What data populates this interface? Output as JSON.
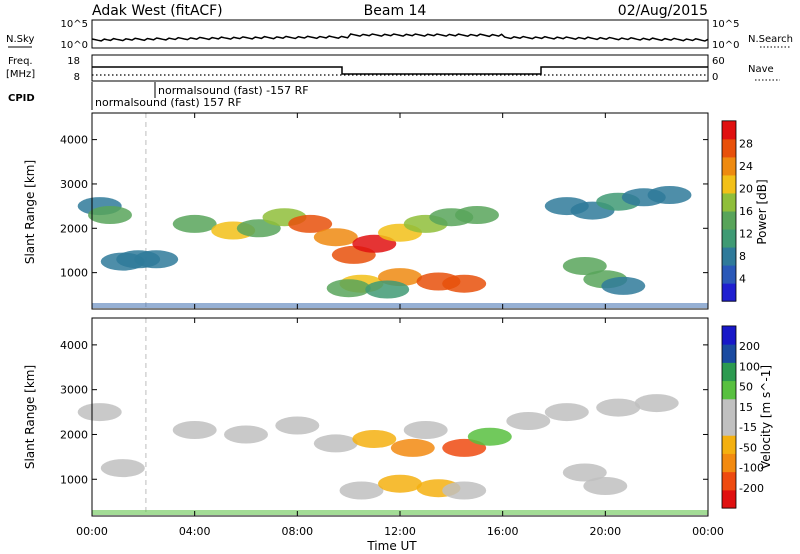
{
  "header": {
    "title_left": "Adak West (fitACF)",
    "title_center": "Beam 14",
    "title_right": "02/Aug/2015"
  },
  "top_panels": {
    "nsky_label": "N.Sky",
    "nsearch_label": "N.Search",
    "scale_hi": "10^5",
    "scale_lo": "10^0",
    "freq_label": "Freq.",
    "freq_unit": "[MHz]",
    "freq_ticks": [
      "18",
      "8"
    ],
    "nave_label": "Nave",
    "nave_ticks": [
      "60",
      "0"
    ],
    "cpid_label": "CPID",
    "cpid_line1": "normalsound (fast) -157 RF",
    "cpid_line2": "normalsound (fast) 157 RF"
  },
  "colors": {
    "power": [
      "#1f1fd0",
      "#2a58b8",
      "#2f7a9a",
      "#3f9a74",
      "#58a45a",
      "#8fbe3a",
      "#f2c018",
      "#ee8a10",
      "#e8500a",
      "#e01010"
    ],
    "velocity": [
      "#e01010",
      "#ee4a10",
      "#f28a10",
      "#f4b010",
      "#c0c0c0",
      "#c0c0c0",
      "#58c040",
      "#2c9a50",
      "#1a4aa0",
      "#1818c8"
    ]
  },
  "chart_data": [
    {
      "type": "heatmap",
      "name": "power-panel",
      "xlabel": "Time UT",
      "ylabel": "Slant Range [km]",
      "xlim": [
        0,
        24
      ],
      "ylim": [
        180,
        4600
      ],
      "xticks": [
        "00:00",
        "04:00",
        "08:00",
        "12:00",
        "16:00",
        "20:00",
        "00:00"
      ],
      "yticks": [
        1000,
        2000,
        3000,
        4000
      ],
      "colorbar_label": "Power [dB]",
      "colorbar_ticks": [
        "28",
        "24",
        "20",
        "16",
        "12",
        "8",
        "4"
      ],
      "colorbar_range": [
        0,
        30
      ],
      "series": [
        {
          "points": [
            [
              0.3,
              2500,
              6
            ],
            [
              0.7,
              2300,
              12
            ],
            [
              1.2,
              1250,
              8
            ],
            [
              1.8,
              1300,
              6
            ],
            [
              2.5,
              1300,
              6
            ],
            [
              4.0,
              2100,
              14
            ],
            [
              5.5,
              1950,
              18
            ],
            [
              6.5,
              2000,
              14
            ],
            [
              7.5,
              2250,
              16
            ],
            [
              8.5,
              2100,
              24
            ],
            [
              9.5,
              1800,
              22
            ],
            [
              10.2,
              1400,
              26
            ],
            [
              11.0,
              1650,
              28
            ],
            [
              12.0,
              1900,
              20
            ],
            [
              13.0,
              2100,
              16
            ],
            [
              14.0,
              2250,
              14
            ],
            [
              15.0,
              2300,
              12
            ],
            [
              10.5,
              750,
              18
            ],
            [
              12.0,
              900,
              22
            ],
            [
              13.5,
              800,
              24
            ],
            [
              14.5,
              750,
              24
            ],
            [
              10.0,
              650,
              12
            ],
            [
              11.5,
              620,
              10
            ],
            [
              18.5,
              2500,
              8
            ],
            [
              19.5,
              2400,
              6
            ],
            [
              20.5,
              2600,
              10
            ],
            [
              21.5,
              2700,
              8
            ],
            [
              22.5,
              2750,
              6
            ],
            [
              19.2,
              1150,
              14
            ],
            [
              20.0,
              850,
              12
            ],
            [
              20.7,
              700,
              8
            ]
          ]
        }
      ]
    },
    {
      "type": "heatmap",
      "name": "velocity-panel",
      "xlabel": "Time UT",
      "ylabel": "Slant Range [km]",
      "xlim": [
        0,
        24
      ],
      "ylim": [
        180,
        4600
      ],
      "xticks": [
        "00:00",
        "04:00",
        "08:00",
        "12:00",
        "16:00",
        "20:00",
        "00:00"
      ],
      "yticks": [
        1000,
        2000,
        3000,
        4000
      ],
      "colorbar_label": "Velocity [m s^-1]",
      "colorbar_ticks": [
        "200",
        "100",
        "50",
        "15",
        "-15",
        "-50",
        "-100",
        "-200"
      ],
      "colorbar_range": [
        -250,
        250
      ],
      "series": [
        {
          "points": [
            [
              0.3,
              2500,
              0
            ],
            [
              1.2,
              1250,
              0
            ],
            [
              4.0,
              2100,
              0
            ],
            [
              6.0,
              2000,
              0
            ],
            [
              8.0,
              2200,
              0
            ],
            [
              9.5,
              1800,
              0
            ],
            [
              11.0,
              1900,
              -60
            ],
            [
              12.5,
              1700,
              -150
            ],
            [
              13.0,
              2100,
              0
            ],
            [
              14.5,
              1700,
              -200
            ],
            [
              15.5,
              1950,
              60
            ],
            [
              10.5,
              750,
              -40
            ],
            [
              12.0,
              900,
              -60
            ],
            [
              13.5,
              800,
              -80
            ],
            [
              14.5,
              750,
              -40
            ],
            [
              17.0,
              2300,
              40
            ],
            [
              18.5,
              2500,
              0
            ],
            [
              20.5,
              2600,
              0
            ],
            [
              22.0,
              2700,
              0
            ],
            [
              19.2,
              1150,
              0
            ],
            [
              20.0,
              850,
              0
            ]
          ]
        }
      ]
    }
  ]
}
